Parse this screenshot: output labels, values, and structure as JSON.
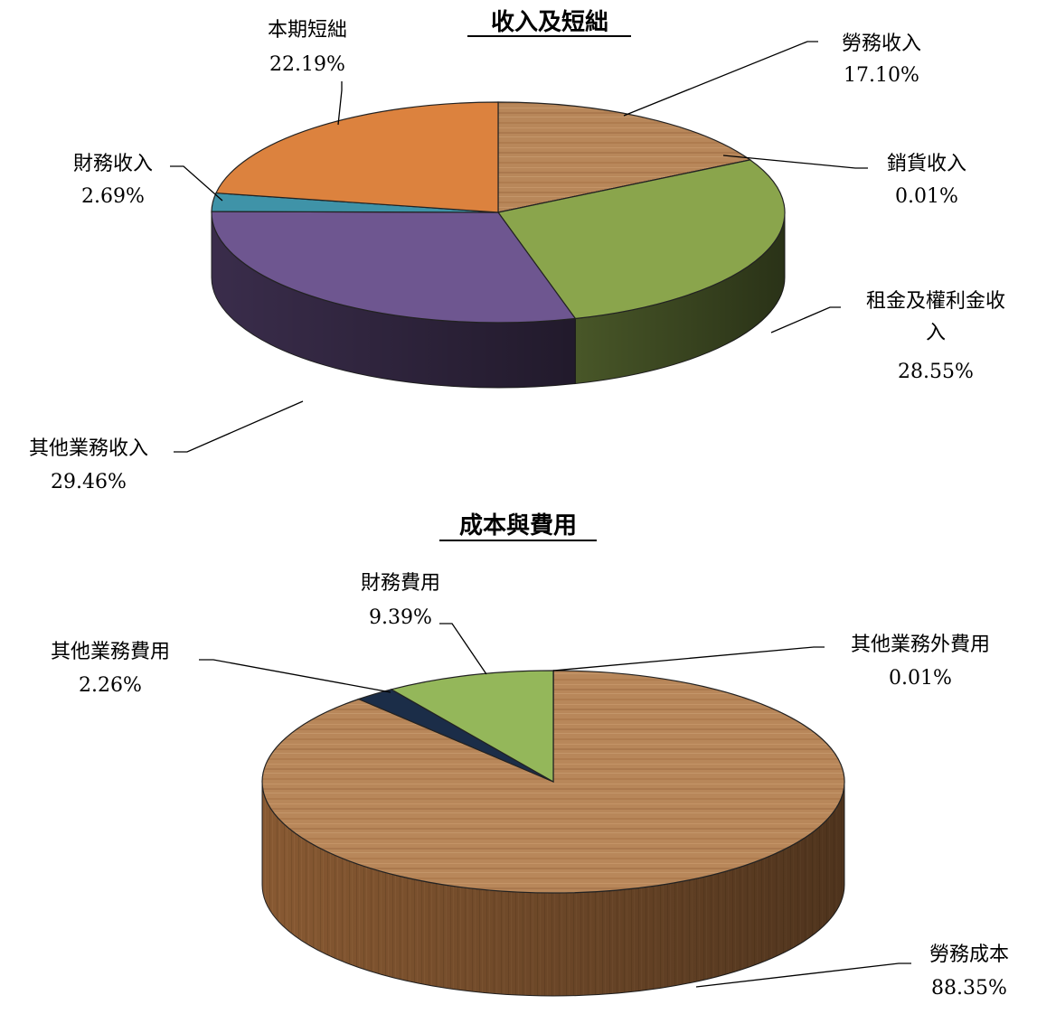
{
  "chart_data": [
    {
      "type": "pie",
      "title": "收入及短絀",
      "slices": [
        {
          "label": "勞務收入",
          "value_text": "17.10%",
          "value": 17.1,
          "color": "#b98a5c"
        },
        {
          "label": "銷貨收入",
          "value_text": "0.01%",
          "value": 0.01,
          "color": "#6e8a3a"
        },
        {
          "label": "租金及權利金收入",
          "value_text": "28.55%",
          "value": 28.55,
          "color": "#8aa54c"
        },
        {
          "label": "其他業務收入",
          "value_text": "29.46%",
          "value": 29.46,
          "color": "#6e5690"
        },
        {
          "label": "財務收入",
          "value_text": "2.69%",
          "value": 2.69,
          "color": "#3f93a8"
        },
        {
          "label": "本期短絀",
          "value_text": "22.19%",
          "value": 22.19,
          "color": "#dc823e"
        }
      ]
    },
    {
      "type": "pie",
      "title": "成本與費用",
      "slices": [
        {
          "label": "其他業務外費用",
          "value_text": "0.01%",
          "value": 0.01,
          "color": "#5a7a2c"
        },
        {
          "label": "勞務成本",
          "value_text": "88.35%",
          "value": 88.35,
          "color": "#b07a4a"
        },
        {
          "label": "其他業務費用",
          "value_text": "2.26%",
          "value": 2.26,
          "color": "#1b2d48"
        },
        {
          "label": "財務費用",
          "value_text": "9.39%",
          "value": 9.39,
          "color": "#94b75a"
        }
      ]
    }
  ]
}
